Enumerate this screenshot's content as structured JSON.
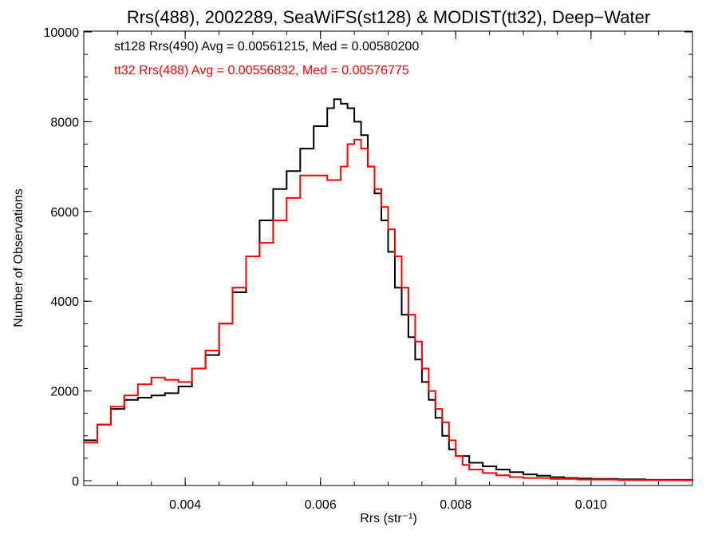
{
  "chart_data": {
    "type": "line",
    "title": "Rrs(488), 2002289, SeaWiFS(st128) & MODIST(tt32), Deep−Water",
    "xlabel": "Rrs (str⁻¹)",
    "ylabel": "Number of Observations",
    "xlim": [
      0.0025,
      0.0115
    ],
    "ylim": [
      0,
      10000
    ],
    "x_ticks": [
      0.004,
      0.006,
      0.008,
      0.01
    ],
    "x_tick_labels": [
      "0.004",
      "0.006",
      "0.008",
      "0.010"
    ],
    "y_ticks": [
      0,
      2000,
      4000,
      6000,
      8000,
      10000
    ],
    "y_tick_labels": [
      "0",
      "2000",
      "4000",
      "6000",
      "8000",
      "10000"
    ],
    "grid": false,
    "legend_position": "top-left",
    "series": [
      {
        "name": "st128 Rrs(490) Avg = 0.00561215, Med = 0.00580200",
        "color": "#000000",
        "points": [
          [
            0.0025,
            900
          ],
          [
            0.0027,
            1250
          ],
          [
            0.0029,
            1600
          ],
          [
            0.0031,
            1800
          ],
          [
            0.0033,
            1850
          ],
          [
            0.0035,
            1900
          ],
          [
            0.0037,
            1950
          ],
          [
            0.0039,
            2100
          ],
          [
            0.0041,
            2500
          ],
          [
            0.0043,
            2800
          ],
          [
            0.0045,
            3500
          ],
          [
            0.0047,
            4200
          ],
          [
            0.0049,
            5000
          ],
          [
            0.0051,
            5800
          ],
          [
            0.0053,
            6500
          ],
          [
            0.0055,
            6900
          ],
          [
            0.0057,
            7400
          ],
          [
            0.0059,
            7900
          ],
          [
            0.0061,
            8300
          ],
          [
            0.0062,
            8500
          ],
          [
            0.0063,
            8400
          ],
          [
            0.0064,
            8300
          ],
          [
            0.0065,
            8000
          ],
          [
            0.0066,
            7700
          ],
          [
            0.0067,
            7000
          ],
          [
            0.0068,
            6400
          ],
          [
            0.0069,
            5800
          ],
          [
            0.007,
            5100
          ],
          [
            0.0071,
            4300
          ],
          [
            0.0072,
            3700
          ],
          [
            0.0073,
            3200
          ],
          [
            0.0074,
            2700
          ],
          [
            0.0075,
            2200
          ],
          [
            0.0076,
            1800
          ],
          [
            0.0077,
            1400
          ],
          [
            0.0078,
            1000
          ],
          [
            0.0079,
            700
          ],
          [
            0.008,
            550
          ],
          [
            0.0082,
            400
          ],
          [
            0.0084,
            320
          ],
          [
            0.0086,
            250
          ],
          [
            0.0088,
            190
          ],
          [
            0.009,
            140
          ],
          [
            0.0092,
            110
          ],
          [
            0.0094,
            80
          ],
          [
            0.0096,
            60
          ],
          [
            0.0098,
            50
          ],
          [
            0.01,
            40
          ],
          [
            0.0104,
            30
          ],
          [
            0.0108,
            20
          ],
          [
            0.0115,
            15
          ]
        ]
      },
      {
        "name": "tt32 Rrs(488) Avg = 0.00556832, Med = 0.00576775",
        "color": "#ff0000",
        "points": [
          [
            0.0025,
            850
          ],
          [
            0.0027,
            1250
          ],
          [
            0.0029,
            1650
          ],
          [
            0.0031,
            1900
          ],
          [
            0.0033,
            2150
          ],
          [
            0.0035,
            2300
          ],
          [
            0.0037,
            2250
          ],
          [
            0.0039,
            2200
          ],
          [
            0.0041,
            2500
          ],
          [
            0.0043,
            2900
          ],
          [
            0.0045,
            3500
          ],
          [
            0.0047,
            4300
          ],
          [
            0.0049,
            5000
          ],
          [
            0.0051,
            5300
          ],
          [
            0.0053,
            5800
          ],
          [
            0.0055,
            6300
          ],
          [
            0.0057,
            6800
          ],
          [
            0.0059,
            6800
          ],
          [
            0.0061,
            6700
          ],
          [
            0.0063,
            7000
          ],
          [
            0.0064,
            7500
          ],
          [
            0.0065,
            7600
          ],
          [
            0.0066,
            7400
          ],
          [
            0.0067,
            7000
          ],
          [
            0.0068,
            6500
          ],
          [
            0.0069,
            6100
          ],
          [
            0.007,
            5600
          ],
          [
            0.0071,
            5000
          ],
          [
            0.0072,
            4300
          ],
          [
            0.0073,
            3700
          ],
          [
            0.0074,
            3100
          ],
          [
            0.0075,
            2500
          ],
          [
            0.0076,
            2000
          ],
          [
            0.0077,
            1600
          ],
          [
            0.0078,
            1300
          ],
          [
            0.0079,
            900
          ],
          [
            0.008,
            550
          ],
          [
            0.0081,
            350
          ],
          [
            0.0082,
            250
          ],
          [
            0.0084,
            170
          ],
          [
            0.0086,
            120
          ],
          [
            0.0088,
            80
          ],
          [
            0.009,
            60
          ],
          [
            0.0094,
            40
          ],
          [
            0.0098,
            25
          ],
          [
            0.0104,
            15
          ],
          [
            0.011,
            10
          ],
          [
            0.0115,
            5
          ]
        ]
      }
    ]
  }
}
